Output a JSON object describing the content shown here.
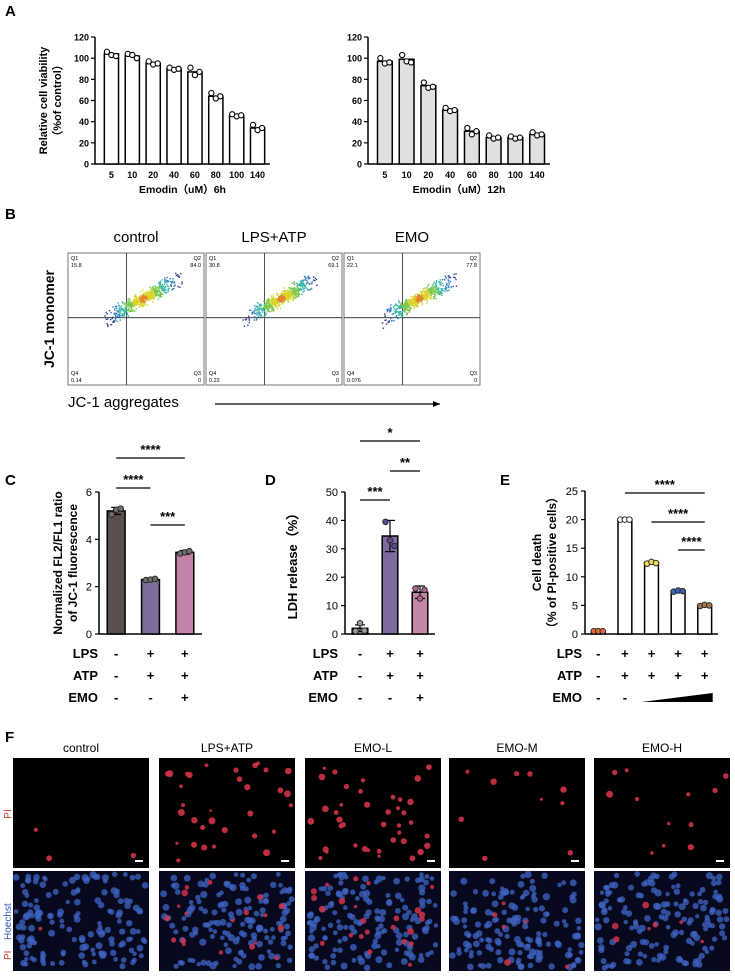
{
  "panel_letters": {
    "a": "A",
    "b": "B",
    "c": "C",
    "d": "D",
    "e": "E",
    "f": "F"
  },
  "colors": {
    "bar_A1": "#ffffff",
    "bar_A2": "#e0e0e0",
    "C": [
      "#5a4e4e",
      "#7e6c9c",
      "#c283a8"
    ],
    "D": [
      "#bdb8bd",
      "#7e6a9e",
      "#c486a8"
    ],
    "E_points": [
      "#e36a3b",
      "#ffffff",
      "#ecdf55",
      "#3e62b6",
      "#a6774e"
    ],
    "fluor_red": "#d2334a",
    "fluor_blue": "#3f66c6"
  },
  "chart_data": [
    {
      "id": "A1",
      "type": "bar",
      "categories": [
        "5",
        "10",
        "20",
        "40",
        "60",
        "80",
        "100",
        "140"
      ],
      "values": [
        104,
        102,
        95,
        90,
        87,
        64,
        46,
        34
      ],
      "points": [
        [
          106,
          103,
          102
        ],
        [
          104,
          103,
          100
        ],
        [
          97,
          94,
          95
        ],
        [
          91,
          89,
          90
        ],
        [
          91,
          84,
          87
        ],
        [
          67,
          62,
          64
        ],
        [
          47,
          45,
          46
        ],
        [
          37,
          32,
          34
        ]
      ],
      "xlabel": "Emodin（uM）6h",
      "ylabel_line1": "Relative cell viability",
      "ylabel_line2": "（%of control）",
      "ylim": [
        0,
        120
      ],
      "yticks": [
        "0",
        "20",
        "40",
        "60",
        "80",
        "100",
        "120"
      ]
    },
    {
      "id": "A2",
      "type": "bar",
      "categories": [
        "5",
        "10",
        "20",
        "40",
        "60",
        "80",
        "100",
        "140"
      ],
      "values": [
        97,
        99,
        74,
        51,
        31,
        25,
        25,
        28
      ],
      "points": [
        [
          100,
          95,
          96
        ],
        [
          103,
          97,
          96
        ],
        [
          77,
          72,
          73
        ],
        [
          53,
          50,
          51
        ],
        [
          34,
          28,
          31
        ],
        [
          27,
          24,
          25
        ],
        [
          26,
          24,
          25
        ],
        [
          30,
          27,
          28
        ]
      ],
      "xlabel": "Emodin（uM）12h",
      "ylim": [
        0,
        120
      ],
      "yticks": [
        "0",
        "20",
        "40",
        "60",
        "80",
        "100",
        "120"
      ]
    },
    {
      "id": "B",
      "type": "scatter",
      "plots": [
        {
          "title": "control",
          "q": {
            "q1_label": "Q1",
            "q1": "15.8",
            "q2_label": "Q2",
            "q2": "84.0",
            "q3_label": "Q3",
            "q3": "0",
            "q4_label": "Q4",
            "q4": "0.14"
          }
        },
        {
          "title": "LPS+ATP",
          "q": {
            "q1_label": "Q1",
            "q1": "30.8",
            "q2_label": "Q2",
            "q2": "69.1",
            "q3_label": "Q3",
            "q3": "0",
            "q4_label": "Q4",
            "q4": "0.22"
          }
        },
        {
          "title": "EMO",
          "q": {
            "q1_label": "Q1",
            "q1": "22.1",
            "q2_label": "Q2",
            "q2": "77.8",
            "q3_label": "Q3",
            "q3": "0",
            "q4_label": "Q4",
            "q4": "0.076"
          }
        }
      ],
      "ylabel": "JC-1 monomer",
      "xlabel": "JC-1 aggregates"
    },
    {
      "id": "C",
      "type": "bar",
      "values": [
        5.2,
        2.3,
        3.45
      ],
      "errors": [
        0.15,
        0.05,
        0.08
      ],
      "points": [
        [
          5.05,
          5.25,
          5.3
        ],
        [
          2.28,
          2.3,
          2.33
        ],
        [
          3.4,
          3.45,
          3.5
        ]
      ],
      "ylabel_line1": "Normalized FL2/FL1 ratio",
      "ylabel_line2": "of JC-1 fluorescence",
      "ylim": [
        0,
        6
      ],
      "yticks": [
        "0",
        "2",
        "4",
        "6"
      ],
      "rows": [
        {
          "label": "LPS",
          "vals": [
            "-",
            "+",
            "+"
          ]
        },
        {
          "label": "ATP",
          "vals": [
            "-",
            "+",
            "+"
          ]
        },
        {
          "label": "EMO",
          "vals": [
            "-",
            "-",
            "+"
          ]
        }
      ],
      "sig": [
        "****",
        "****",
        "***"
      ]
    },
    {
      "id": "D",
      "type": "bar",
      "values": [
        2,
        34.5,
        14.7
      ],
      "errors": [
        1.2,
        5.5,
        2.2
      ],
      "points": [
        [
          1,
          3.8,
          1.2
        ],
        [
          39.5,
          33,
          31
        ],
        [
          16,
          12.5,
          15.5
        ]
      ],
      "ylabel": "LDH release（%）",
      "ylim": [
        0,
        50
      ],
      "yticks": [
        "0",
        "10",
        "20",
        "30",
        "40",
        "50"
      ],
      "rows": [
        {
          "label": "LPS",
          "vals": [
            "-",
            "+",
            "+"
          ]
        },
        {
          "label": "ATP",
          "vals": [
            "-",
            "+",
            "+"
          ]
        },
        {
          "label": "EMO",
          "vals": [
            "-",
            "-",
            "+"
          ]
        }
      ],
      "sig": [
        "*",
        "**",
        "***"
      ]
    },
    {
      "id": "E",
      "type": "bar",
      "values": [
        0.5,
        20,
        12.5,
        7.5,
        5
      ],
      "points": [
        [
          0.5,
          0.5,
          0.5
        ],
        [
          20,
          20,
          20
        ],
        [
          12.3,
          12.6,
          12.4
        ],
        [
          7.4,
          7.6,
          7.5
        ],
        [
          4.9,
          5.1,
          5
        ]
      ],
      "ylabel_line1": "Cell death",
      "ylabel_line2": "（% of PI-positive cells）",
      "ylim": [
        0,
        25
      ],
      "yticks": [
        "0",
        "5",
        "10",
        "15",
        "20",
        "25"
      ],
      "rows": [
        {
          "label": "LPS",
          "vals": [
            "-",
            "+",
            "+",
            "+",
            "+"
          ]
        },
        {
          "label": "ATP",
          "vals": [
            "-",
            "+",
            "+",
            "+",
            "+"
          ]
        },
        {
          "label": "EMO",
          "vals": [
            "-",
            "-",
            "",
            "",
            ""
          ]
        }
      ],
      "sig": [
        "****",
        "****",
        "****"
      ]
    },
    {
      "id": "F",
      "type": "image-grid",
      "columns": [
        "control",
        "LPS+ATP",
        "EMO-L",
        "EMO-M",
        "EMO-H"
      ],
      "row1_label": "PI",
      "row2_label_a": "PI",
      "row2_label_b": "Hoechst",
      "pi_counts": [
        3,
        32,
        40,
        10,
        12
      ]
    }
  ]
}
